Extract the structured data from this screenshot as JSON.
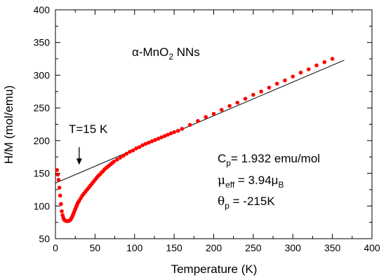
{
  "chart_data": {
    "type": "scatter",
    "xlabel": "Temperature (K)",
    "ylabel": "H/M (mol/emu)",
    "xlim": [
      0,
      400
    ],
    "ylim": [
      50,
      400
    ],
    "xticks": [
      0,
      50,
      100,
      150,
      200,
      250,
      300,
      350,
      400
    ],
    "yticks": [
      50,
      100,
      150,
      200,
      250,
      300,
      350,
      400
    ],
    "grid": false,
    "marker_color": "#ff0000",
    "fit_line_color": "#000000",
    "series": [
      {
        "kind": "markers",
        "x": [
          2,
          3,
          4,
          5,
          6,
          7,
          8,
          9,
          10,
          11,
          12,
          13,
          14,
          15,
          16,
          17,
          18,
          19,
          20,
          21,
          22,
          23,
          24,
          25,
          26,
          27,
          28,
          29,
          30,
          32,
          34,
          36,
          38,
          40,
          42,
          44,
          46,
          48,
          50,
          52,
          54,
          56,
          58,
          60,
          62,
          64,
          66,
          68,
          70,
          72,
          74,
          78,
          82,
          86,
          90,
          94,
          98,
          102,
          106,
          110,
          114,
          118,
          122,
          126,
          130,
          134,
          138,
          142,
          146,
          150,
          155,
          160,
          170,
          180,
          190,
          200,
          210,
          220,
          230,
          240,
          250,
          260,
          270,
          280,
          290,
          300,
          310,
          320,
          330,
          340,
          350
        ],
        "y": [
          155,
          148,
          140,
          128,
          116,
          103,
          92,
          86,
          82,
          79,
          78,
          77.5,
          77,
          77,
          77,
          77.5,
          78,
          79,
          81,
          83,
          86,
          89,
          92,
          95,
          98,
          101,
          104,
          106,
          108,
          112,
          116,
          119,
          122,
          125,
          128,
          131,
          134,
          137,
          140,
          143,
          146,
          148,
          151,
          153,
          156,
          158,
          160,
          162,
          164,
          166,
          168,
          171,
          174,
          177,
          180,
          183,
          185,
          188,
          190,
          193,
          195,
          197,
          199,
          201,
          203,
          205,
          207,
          209,
          211,
          213,
          215,
          218,
          224,
          230,
          236,
          241,
          247,
          253,
          258,
          264,
          270,
          275,
          281,
          287,
          292,
          298,
          304,
          309,
          315,
          320,
          325
        ]
      },
      {
        "kind": "line",
        "x": [
          0,
          365
        ],
        "y": [
          135,
          323
        ]
      }
    ],
    "annotations": {
      "sample_label": {
        "prefix": "α-MnO",
        "sub": "2",
        "suffix": " NNs"
      },
      "temperature_marker": {
        "text": "T=15 K",
        "arrow_x": 30,
        "arrow_y_from": 190,
        "arrow_y_to": 163
      },
      "cp": {
        "main": "C",
        "sub": "p",
        "rest": "= 1.932 emu/mol"
      },
      "mu_eff": {
        "main": "μ",
        "sub": "eff",
        "rest": " = 3.94μ",
        "sub2": "B"
      },
      "theta_p": {
        "main": "θ",
        "sub": "p",
        "rest": " = -215K"
      }
    }
  }
}
